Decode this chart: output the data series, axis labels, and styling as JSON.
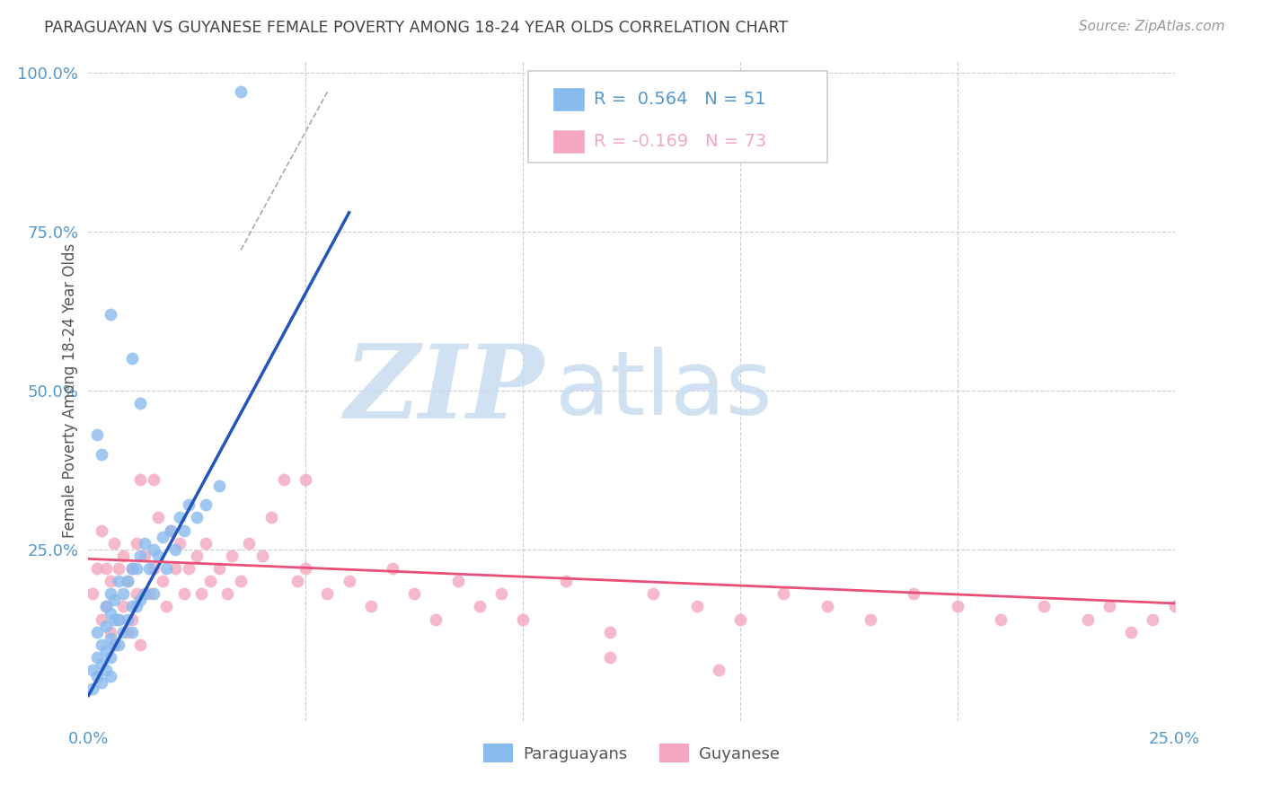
{
  "title": "PARAGUAYAN VS GUYANESE FEMALE POVERTY AMONG 18-24 YEAR OLDS CORRELATION CHART",
  "source": "Source: ZipAtlas.com",
  "ylabel": "Female Poverty Among 18-24 Year Olds",
  "xlim": [
    0.0,
    0.25
  ],
  "ylim": [
    -0.02,
    1.02
  ],
  "xticks": [
    0.0,
    0.05,
    0.1,
    0.15,
    0.2,
    0.25
  ],
  "yticks": [
    0.0,
    0.25,
    0.5,
    0.75,
    1.0
  ],
  "xtick_labels": [
    "0.0%",
    "",
    "",
    "",
    "",
    "25.0%"
  ],
  "ytick_labels": [
    "",
    "25.0%",
    "50.0%",
    "75.0%",
    "100.0%"
  ],
  "background_color": "#ffffff",
  "grid_color": "#cccccc",
  "title_color": "#444444",
  "axis_color": "#5599cc",
  "watermark_zip": "ZIP",
  "watermark_atlas": "atlas",
  "watermark_color_zip": "#c8ddf0",
  "watermark_color_atlas": "#c8ddf0",
  "paraguayan_color": "#88bbee",
  "guyanese_color": "#f4a8c0",
  "paraguayan_line_color": "#2255bb",
  "guyanese_line_color": "#e8507a",
  "ref_line_color": "#aaaaaa",
  "legend_paraguayan_R": 0.564,
  "legend_paraguayan_N": 51,
  "legend_guyanese_R": -0.169,
  "legend_guyanese_N": 73,
  "paraguayan_x": [
    0.001,
    0.001,
    0.002,
    0.002,
    0.002,
    0.003,
    0.003,
    0.003,
    0.004,
    0.004,
    0.004,
    0.004,
    0.005,
    0.005,
    0.005,
    0.005,
    0.005,
    0.006,
    0.006,
    0.006,
    0.007,
    0.007,
    0.007,
    0.008,
    0.008,
    0.009,
    0.009,
    0.01,
    0.01,
    0.01,
    0.011,
    0.011,
    0.012,
    0.012,
    0.013,
    0.013,
    0.014,
    0.015,
    0.015,
    0.016,
    0.017,
    0.018,
    0.019,
    0.02,
    0.021,
    0.022,
    0.023,
    0.025,
    0.027,
    0.03
  ],
  "paraguayan_y": [
    0.03,
    0.06,
    0.05,
    0.08,
    0.12,
    0.04,
    0.07,
    0.1,
    0.06,
    0.09,
    0.13,
    0.16,
    0.05,
    0.08,
    0.11,
    0.15,
    0.18,
    0.1,
    0.14,
    0.17,
    0.1,
    0.14,
    0.2,
    0.12,
    0.18,
    0.14,
    0.2,
    0.12,
    0.16,
    0.22,
    0.16,
    0.22,
    0.17,
    0.24,
    0.18,
    0.26,
    0.22,
    0.18,
    0.25,
    0.24,
    0.27,
    0.22,
    0.28,
    0.25,
    0.3,
    0.28,
    0.32,
    0.3,
    0.32,
    0.35
  ],
  "paraguayan_outlier_x": [
    0.005
  ],
  "paraguayan_outlier_y": [
    0.62
  ],
  "paraguayan_outlier2_x": [
    0.01
  ],
  "paraguayan_outlier2_y": [
    0.55
  ],
  "paraguayan_outlier3_x": [
    0.012
  ],
  "paraguayan_outlier3_y": [
    0.48
  ],
  "paraguayan_outlier4_x": [
    0.002
  ],
  "paraguayan_outlier4_y": [
    0.43
  ],
  "paraguayan_outlier5_x": [
    0.003
  ],
  "paraguayan_outlier5_y": [
    0.4
  ],
  "paraguayan_big_outlier_x": [
    0.035
  ],
  "paraguayan_big_outlier_y": [
    0.97
  ],
  "paraguayan_trend_x": [
    0.0,
    0.06
  ],
  "paraguayan_trend_y": [
    0.02,
    0.78
  ],
  "guyanese_x": [
    0.001,
    0.002,
    0.003,
    0.003,
    0.004,
    0.004,
    0.005,
    0.005,
    0.006,
    0.006,
    0.007,
    0.007,
    0.008,
    0.008,
    0.009,
    0.009,
    0.01,
    0.01,
    0.011,
    0.011,
    0.012,
    0.013,
    0.014,
    0.015,
    0.016,
    0.017,
    0.018,
    0.019,
    0.02,
    0.021,
    0.022,
    0.023,
    0.025,
    0.026,
    0.027,
    0.028,
    0.03,
    0.032,
    0.033,
    0.035,
    0.037,
    0.04,
    0.042,
    0.045,
    0.048,
    0.05,
    0.055,
    0.06,
    0.065,
    0.07,
    0.075,
    0.08,
    0.085,
    0.09,
    0.095,
    0.1,
    0.11,
    0.12,
    0.13,
    0.14,
    0.15,
    0.16,
    0.17,
    0.18,
    0.19,
    0.2,
    0.21,
    0.22,
    0.23,
    0.235,
    0.24,
    0.245,
    0.25
  ],
  "guyanese_y": [
    0.18,
    0.22,
    0.14,
    0.28,
    0.16,
    0.22,
    0.12,
    0.2,
    0.1,
    0.26,
    0.14,
    0.22,
    0.16,
    0.24,
    0.12,
    0.2,
    0.14,
    0.22,
    0.18,
    0.26,
    0.1,
    0.24,
    0.18,
    0.22,
    0.3,
    0.2,
    0.16,
    0.28,
    0.22,
    0.26,
    0.18,
    0.22,
    0.24,
    0.18,
    0.26,
    0.2,
    0.22,
    0.18,
    0.24,
    0.2,
    0.26,
    0.24,
    0.3,
    0.36,
    0.2,
    0.22,
    0.18,
    0.2,
    0.16,
    0.22,
    0.18,
    0.14,
    0.2,
    0.16,
    0.18,
    0.14,
    0.2,
    0.12,
    0.18,
    0.16,
    0.14,
    0.18,
    0.16,
    0.14,
    0.18,
    0.16,
    0.14,
    0.16,
    0.14,
    0.16,
    0.12,
    0.14,
    0.16
  ],
  "guyanese_outlier1_x": [
    0.05
  ],
  "guyanese_outlier1_y": [
    0.36
  ],
  "guyanese_outlier2_x": [
    0.012
  ],
  "guyanese_outlier2_y": [
    0.36
  ],
  "guyanese_outlier3_x": [
    0.015
  ],
  "guyanese_outlier3_y": [
    0.36
  ],
  "guyanese_outlier4_x": [
    0.12
  ],
  "guyanese_outlier4_y": [
    0.08
  ],
  "guyanese_outlier5_x": [
    0.145
  ],
  "guyanese_outlier5_y": [
    0.06
  ],
  "guyanese_trend_x": [
    0.0,
    0.25
  ],
  "guyanese_trend_y": [
    0.235,
    0.165
  ],
  "ref_line_x": [
    0.055,
    0.035
  ],
  "ref_line_y": [
    0.97,
    0.72
  ],
  "marker_size": 100
}
